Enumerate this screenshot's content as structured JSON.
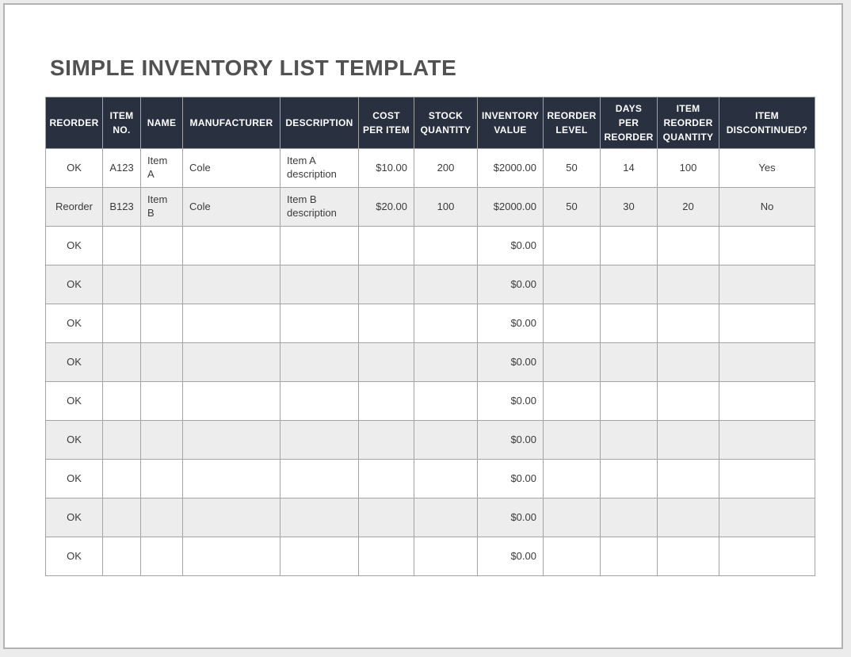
{
  "page": {
    "title": "SIMPLE INVENTORY LIST TEMPLATE"
  },
  "colors": {
    "header_bg": "#293040",
    "header_text": "#ffffff",
    "stripe_bg": "#ededed",
    "grid_line": "#a3a3a3",
    "body_text": "#3b3b3b",
    "title_text": "#525252",
    "page_bg": "#ffffff",
    "outer_bg": "#ececec"
  },
  "table": {
    "columns": [
      {
        "key": "reorder",
        "label": "REORDER",
        "width": 72,
        "align": "center"
      },
      {
        "key": "item_no",
        "label": "ITEM\nNO.",
        "width": 48,
        "align": "center"
      },
      {
        "key": "name",
        "label": "NAME",
        "width": 53,
        "align": "left"
      },
      {
        "key": "manufacturer",
        "label": "MANUFACTURER",
        "width": 123,
        "align": "left"
      },
      {
        "key": "description",
        "label": "DESCRIPTION",
        "width": 99,
        "align": "left"
      },
      {
        "key": "cost_per_item",
        "label": "COST\nPER ITEM",
        "width": 70,
        "align": "right"
      },
      {
        "key": "stock_quantity",
        "label": "STOCK\nQUANTITY",
        "width": 80,
        "align": "center"
      },
      {
        "key": "inventory_value",
        "label": "INVENTORY\nVALUE",
        "width": 83,
        "align": "right"
      },
      {
        "key": "reorder_level",
        "label": "REORDER\nLEVEL",
        "width": 72,
        "align": "center"
      },
      {
        "key": "days_per_reorder",
        "label": "DAYS\nPER\nREORDER",
        "width": 72,
        "align": "center"
      },
      {
        "key": "item_reorder_quantity",
        "label": "ITEM\nREORDER\nQUANTITY",
        "width": 78,
        "align": "center"
      },
      {
        "key": "item_discontinued",
        "label": "ITEM\nDISCONTINUED?",
        "width": 121,
        "align": "center"
      }
    ],
    "rows": [
      {
        "reorder": "OK",
        "item_no": "A123",
        "name": "Item\nA",
        "manufacturer": "Cole",
        "description": "Item A description",
        "cost_per_item": "$10.00",
        "stock_quantity": "200",
        "inventory_value": "$2000.00",
        "reorder_level": "50",
        "days_per_reorder": "14",
        "item_reorder_quantity": "100",
        "item_discontinued": "Yes"
      },
      {
        "reorder": "Reorder",
        "item_no": "B123",
        "name": "Item B",
        "manufacturer": "Cole",
        "description": "Item B description",
        "cost_per_item": "$20.00",
        "stock_quantity": "100",
        "inventory_value": "$2000.00",
        "reorder_level": "50",
        "days_per_reorder": "30",
        "item_reorder_quantity": "20",
        "item_discontinued": "No"
      },
      {
        "reorder": "OK",
        "item_no": "",
        "name": "",
        "manufacturer": "",
        "description": "",
        "cost_per_item": "",
        "stock_quantity": "",
        "inventory_value": "$0.00",
        "reorder_level": "",
        "days_per_reorder": "",
        "item_reorder_quantity": "",
        "item_discontinued": ""
      },
      {
        "reorder": "OK",
        "item_no": "",
        "name": "",
        "manufacturer": "",
        "description": "",
        "cost_per_item": "",
        "stock_quantity": "",
        "inventory_value": "$0.00",
        "reorder_level": "",
        "days_per_reorder": "",
        "item_reorder_quantity": "",
        "item_discontinued": ""
      },
      {
        "reorder": "OK",
        "item_no": "",
        "name": "",
        "manufacturer": "",
        "description": "",
        "cost_per_item": "",
        "stock_quantity": "",
        "inventory_value": "$0.00",
        "reorder_level": "",
        "days_per_reorder": "",
        "item_reorder_quantity": "",
        "item_discontinued": ""
      },
      {
        "reorder": "OK",
        "item_no": "",
        "name": "",
        "manufacturer": "",
        "description": "",
        "cost_per_item": "",
        "stock_quantity": "",
        "inventory_value": "$0.00",
        "reorder_level": "",
        "days_per_reorder": "",
        "item_reorder_quantity": "",
        "item_discontinued": ""
      },
      {
        "reorder": "OK",
        "item_no": "",
        "name": "",
        "manufacturer": "",
        "description": "",
        "cost_per_item": "",
        "stock_quantity": "",
        "inventory_value": "$0.00",
        "reorder_level": "",
        "days_per_reorder": "",
        "item_reorder_quantity": "",
        "item_discontinued": ""
      },
      {
        "reorder": "OK",
        "item_no": "",
        "name": "",
        "manufacturer": "",
        "description": "",
        "cost_per_item": "",
        "stock_quantity": "",
        "inventory_value": "$0.00",
        "reorder_level": "",
        "days_per_reorder": "",
        "item_reorder_quantity": "",
        "item_discontinued": ""
      },
      {
        "reorder": "OK",
        "item_no": "",
        "name": "",
        "manufacturer": "",
        "description": "",
        "cost_per_item": "",
        "stock_quantity": "",
        "inventory_value": "$0.00",
        "reorder_level": "",
        "days_per_reorder": "",
        "item_reorder_quantity": "",
        "item_discontinued": ""
      },
      {
        "reorder": "OK",
        "item_no": "",
        "name": "",
        "manufacturer": "",
        "description": "",
        "cost_per_item": "",
        "stock_quantity": "",
        "inventory_value": "$0.00",
        "reorder_level": "",
        "days_per_reorder": "",
        "item_reorder_quantity": "",
        "item_discontinued": ""
      },
      {
        "reorder": "OK",
        "item_no": "",
        "name": "",
        "manufacturer": "",
        "description": "",
        "cost_per_item": "",
        "stock_quantity": "",
        "inventory_value": "$0.00",
        "reorder_level": "",
        "days_per_reorder": "",
        "item_reorder_quantity": "",
        "item_discontinued": ""
      }
    ]
  }
}
